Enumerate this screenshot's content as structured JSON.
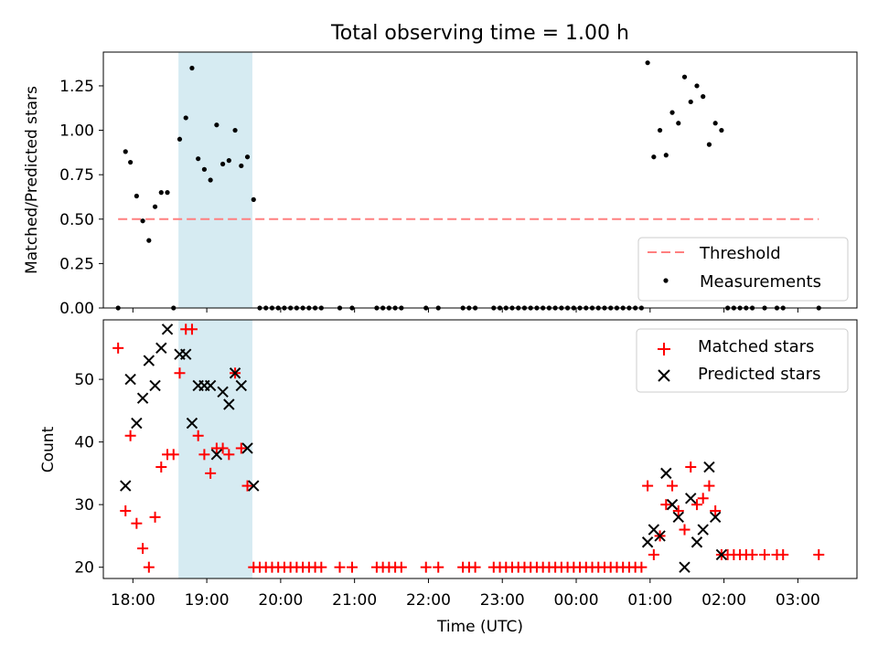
{
  "chart_data": [
    {
      "type": "scatter",
      "title": "Total observing time = 1.00 h",
      "ylabel": "Matched/Predicted stars",
      "xlabel": "",
      "xlim": [
        "17:36",
        "03:48"
      ],
      "ylim": [
        0,
        1.44
      ],
      "yticks": [
        "0.00",
        "0.25",
        "0.50",
        "0.75",
        "1.00",
        "1.25"
      ],
      "shaded_span": [
        "18:37",
        "19:37"
      ],
      "threshold": {
        "name": "Threshold",
        "y": 0.5,
        "x_range": [
          "17:48",
          "03:17"
        ],
        "color": "#ff7f7f"
      },
      "series": [
        {
          "name": "Measurements",
          "color": "#000000",
          "points": [
            [
              "17:48",
              0
            ],
            [
              "17:54",
              0.88
            ],
            [
              "17:58",
              0.82
            ],
            [
              "18:03",
              0.63
            ],
            [
              "18:08",
              0.49
            ],
            [
              "18:13",
              0.38
            ],
            [
              "18:18",
              0.57
            ],
            [
              "18:23",
              0.65
            ],
            [
              "18:28",
              0.65
            ],
            [
              "18:33",
              0
            ],
            [
              "18:38",
              0.95
            ],
            [
              "18:43",
              1.07
            ],
            [
              "18:48",
              1.35
            ],
            [
              "18:53",
              0.84
            ],
            [
              "18:58",
              0.78
            ],
            [
              "19:03",
              0.72
            ],
            [
              "19:08",
              1.03
            ],
            [
              "19:13",
              0.81
            ],
            [
              "19:18",
              0.83
            ],
            [
              "19:23",
              1.0
            ],
            [
              "19:28",
              0.8
            ],
            [
              "19:33",
              0.85
            ],
            [
              "19:38",
              0.61
            ],
            [
              "19:43",
              0
            ],
            [
              "19:48",
              0
            ],
            [
              "19:53",
              0
            ],
            [
              "19:58",
              0
            ],
            [
              "20:03",
              0
            ],
            [
              "20:08",
              0
            ],
            [
              "20:13",
              0
            ],
            [
              "20:18",
              0
            ],
            [
              "20:23",
              0
            ],
            [
              "20:28",
              0
            ],
            [
              "20:33",
              0
            ],
            [
              "20:48",
              0
            ],
            [
              "20:58",
              0
            ],
            [
              "21:18",
              0
            ],
            [
              "21:23",
              0
            ],
            [
              "21:28",
              0
            ],
            [
              "21:33",
              0
            ],
            [
              "21:38",
              0
            ],
            [
              "21:58",
              0
            ],
            [
              "22:08",
              0
            ],
            [
              "22:28",
              0
            ],
            [
              "22:33",
              0
            ],
            [
              "22:38",
              0
            ],
            [
              "22:53",
              0
            ],
            [
              "22:58",
              0
            ],
            [
              "23:03",
              0
            ],
            [
              "23:08",
              0
            ],
            [
              "23:13",
              0
            ],
            [
              "23:18",
              0
            ],
            [
              "23:23",
              0
            ],
            [
              "23:28",
              0
            ],
            [
              "23:33",
              0
            ],
            [
              "23:38",
              0
            ],
            [
              "23:43",
              0
            ],
            [
              "23:48",
              0
            ],
            [
              "23:53",
              0
            ],
            [
              "23:58",
              0
            ],
            [
              "00:03",
              0
            ],
            [
              "00:08",
              0
            ],
            [
              "00:13",
              0
            ],
            [
              "00:18",
              0
            ],
            [
              "00:23",
              0
            ],
            [
              "00:28",
              0
            ],
            [
              "00:33",
              0
            ],
            [
              "00:38",
              0
            ],
            [
              "00:43",
              0
            ],
            [
              "00:48",
              0
            ],
            [
              "00:53",
              0
            ],
            [
              "00:58",
              1.38
            ],
            [
              "01:03",
              0.85
            ],
            [
              "01:08",
              1.0
            ],
            [
              "01:13",
              0.86
            ],
            [
              "01:18",
              1.1
            ],
            [
              "01:23",
              1.04
            ],
            [
              "01:28",
              1.3
            ],
            [
              "01:33",
              1.16
            ],
            [
              "01:38",
              1.25
            ],
            [
              "01:43",
              1.19
            ],
            [
              "01:48",
              0.92
            ],
            [
              "01:53",
              1.04
            ],
            [
              "01:58",
              1.0
            ],
            [
              "02:03",
              0
            ],
            [
              "02:08",
              0
            ],
            [
              "02:13",
              0
            ],
            [
              "02:18",
              0
            ],
            [
              "02:23",
              0
            ],
            [
              "02:33",
              0
            ],
            [
              "02:43",
              0
            ],
            [
              "02:48",
              0
            ],
            [
              "03:17",
              0
            ]
          ]
        }
      ],
      "legend": {
        "placement": "lower-right",
        "entries": [
          "Threshold",
          "Measurements"
        ]
      }
    },
    {
      "type": "scatter",
      "title": "",
      "ylabel": "Count",
      "xlabel": "Time (UTC)",
      "xlim": [
        "17:36",
        "03:48"
      ],
      "ylim": [
        18.2,
        59.5
      ],
      "yticks": [
        "20",
        "30",
        "40",
        "50"
      ],
      "xticks": [
        "18:00",
        "19:00",
        "20:00",
        "21:00",
        "22:00",
        "23:00",
        "00:00",
        "01:00",
        "02:00",
        "03:00"
      ],
      "shaded_span": [
        "18:37",
        "19:37"
      ],
      "series": [
        {
          "name": "Matched stars",
          "color": "#ff0000",
          "marker": "plus",
          "points": [
            [
              "17:48",
              55
            ],
            [
              "17:54",
              29
            ],
            [
              "17:58",
              41
            ],
            [
              "18:03",
              27
            ],
            [
              "18:08",
              23
            ],
            [
              "18:13",
              20
            ],
            [
              "18:18",
              28
            ],
            [
              "18:23",
              36
            ],
            [
              "18:28",
              38
            ],
            [
              "18:33",
              38
            ],
            [
              "18:38",
              51
            ],
            [
              "18:43",
              58
            ],
            [
              "18:48",
              58
            ],
            [
              "18:53",
              41
            ],
            [
              "18:58",
              38
            ],
            [
              "19:03",
              35
            ],
            [
              "19:08",
              39
            ],
            [
              "19:13",
              39
            ],
            [
              "19:18",
              38
            ],
            [
              "19:23",
              51
            ],
            [
              "19:28",
              39
            ],
            [
              "19:33",
              33
            ],
            [
              "19:38",
              20
            ],
            [
              "19:43",
              20
            ],
            [
              "19:48",
              20
            ],
            [
              "19:53",
              20
            ],
            [
              "19:58",
              20
            ],
            [
              "20:03",
              20
            ],
            [
              "20:08",
              20
            ],
            [
              "20:13",
              20
            ],
            [
              "20:18",
              20
            ],
            [
              "20:23",
              20
            ],
            [
              "20:28",
              20
            ],
            [
              "20:33",
              20
            ],
            [
              "20:48",
              20
            ],
            [
              "20:58",
              20
            ],
            [
              "21:18",
              20
            ],
            [
              "21:23",
              20
            ],
            [
              "21:28",
              20
            ],
            [
              "21:33",
              20
            ],
            [
              "21:38",
              20
            ],
            [
              "21:58",
              20
            ],
            [
              "22:08",
              20
            ],
            [
              "22:28",
              20
            ],
            [
              "22:33",
              20
            ],
            [
              "22:38",
              20
            ],
            [
              "22:53",
              20
            ],
            [
              "22:58",
              20
            ],
            [
              "23:03",
              20
            ],
            [
              "23:08",
              20
            ],
            [
              "23:13",
              20
            ],
            [
              "23:18",
              20
            ],
            [
              "23:23",
              20
            ],
            [
              "23:28",
              20
            ],
            [
              "23:33",
              20
            ],
            [
              "23:38",
              20
            ],
            [
              "23:43",
              20
            ],
            [
              "23:48",
              20
            ],
            [
              "23:53",
              20
            ],
            [
              "23:58",
              20
            ],
            [
              "00:03",
              20
            ],
            [
              "00:08",
              20
            ],
            [
              "00:13",
              20
            ],
            [
              "00:18",
              20
            ],
            [
              "00:23",
              20
            ],
            [
              "00:28",
              20
            ],
            [
              "00:33",
              20
            ],
            [
              "00:38",
              20
            ],
            [
              "00:43",
              20
            ],
            [
              "00:48",
              20
            ],
            [
              "00:53",
              20
            ],
            [
              "00:58",
              33
            ],
            [
              "01:03",
              22
            ],
            [
              "01:08",
              25
            ],
            [
              "01:13",
              30
            ],
            [
              "01:18",
              33
            ],
            [
              "01:23",
              29
            ],
            [
              "01:28",
              26
            ],
            [
              "01:33",
              36
            ],
            [
              "01:38",
              30
            ],
            [
              "01:43",
              31
            ],
            [
              "01:48",
              33
            ],
            [
              "01:53",
              29
            ],
            [
              "01:58",
              22
            ],
            [
              "02:03",
              22
            ],
            [
              "02:08",
              22
            ],
            [
              "02:13",
              22
            ],
            [
              "02:18",
              22
            ],
            [
              "02:23",
              22
            ],
            [
              "02:33",
              22
            ],
            [
              "02:43",
              22
            ],
            [
              "02:48",
              22
            ],
            [
              "03:17",
              22
            ]
          ]
        },
        {
          "name": "Predicted stars",
          "color": "#000000",
          "marker": "x",
          "points": [
            [
              "17:54",
              33
            ],
            [
              "17:58",
              50
            ],
            [
              "18:03",
              43
            ],
            [
              "18:08",
              47
            ],
            [
              "18:13",
              53
            ],
            [
              "18:18",
              49
            ],
            [
              "18:23",
              55
            ],
            [
              "18:28",
              58
            ],
            [
              "18:38",
              54
            ],
            [
              "18:43",
              54
            ],
            [
              "18:48",
              43
            ],
            [
              "18:53",
              49
            ],
            [
              "18:58",
              49
            ],
            [
              "19:03",
              49
            ],
            [
              "19:08",
              38
            ],
            [
              "19:13",
              48
            ],
            [
              "19:18",
              46
            ],
            [
              "19:23",
              51
            ],
            [
              "19:28",
              49
            ],
            [
              "19:33",
              39
            ],
            [
              "19:38",
              33
            ],
            [
              "00:58",
              24
            ],
            [
              "01:03",
              26
            ],
            [
              "01:08",
              25
            ],
            [
              "01:13",
              35
            ],
            [
              "01:18",
              30
            ],
            [
              "01:23",
              28
            ],
            [
              "01:28",
              20
            ],
            [
              "01:33",
              31
            ],
            [
              "01:38",
              24
            ],
            [
              "01:43",
              26
            ],
            [
              "01:48",
              36
            ],
            [
              "01:53",
              28
            ],
            [
              "01:58",
              22
            ]
          ]
        }
      ],
      "legend": {
        "placement": "upper-right",
        "entries": [
          "Matched stars",
          "Predicted stars"
        ]
      }
    }
  ]
}
